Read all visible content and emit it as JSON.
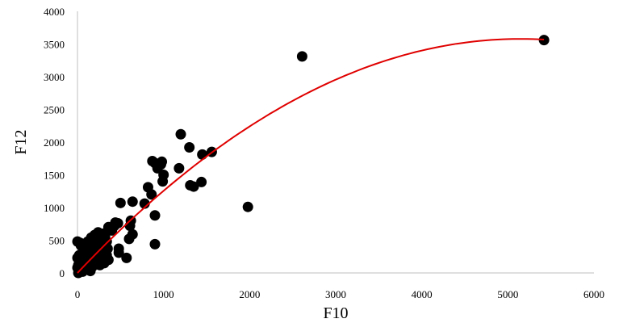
{
  "chart_data": {
    "type": "scatter",
    "xlabel": "F10",
    "ylabel": "F12",
    "xlim": [
      0,
      6000
    ],
    "ylim": [
      0,
      4000
    ],
    "x_ticks": [
      "0",
      "1000",
      "2000",
      "3000",
      "4000",
      "5000",
      "6000"
    ],
    "y_ticks": [
      "0",
      "500",
      "1000",
      "1500",
      "2000",
      "2500",
      "3000",
      "3500",
      "4000"
    ],
    "grid": false,
    "legend": "none",
    "marker_color": "#000000",
    "trendline_color": "#e00000",
    "trendline": {
      "type": "polynomial",
      "degree": 2,
      "coefficients": [
        -0.000135,
        1.39,
        0
      ]
    },
    "points": [
      [
        5420,
        3560
      ],
      [
        2610,
        3310
      ],
      [
        1980,
        1010
      ],
      [
        1560,
        1850
      ],
      [
        1450,
        1810
      ],
      [
        1440,
        1390
      ],
      [
        1350,
        1320
      ],
      [
        1310,
        1340
      ],
      [
        1300,
        1920
      ],
      [
        1200,
        2120
      ],
      [
        1180,
        1600
      ],
      [
        1000,
        1500
      ],
      [
        990,
        1400
      ],
      [
        980,
        1700
      ],
      [
        970,
        1660
      ],
      [
        930,
        1600
      ],
      [
        900,
        1680
      ],
      [
        870,
        1710
      ],
      [
        900,
        880
      ],
      [
        900,
        440
      ],
      [
        860,
        1200
      ],
      [
        820,
        1310
      ],
      [
        780,
        1060
      ],
      [
        640,
        1090
      ],
      [
        640,
        590
      ],
      [
        620,
        800
      ],
      [
        610,
        720
      ],
      [
        600,
        520
      ],
      [
        570,
        230
      ],
      [
        500,
        1070
      ],
      [
        480,
        370
      ],
      [
        480,
        310
      ],
      [
        470,
        760
      ],
      [
        440,
        770
      ],
      [
        430,
        720
      ],
      [
        400,
        650
      ],
      [
        360,
        700
      ],
      [
        340,
        480
      ],
      [
        320,
        560
      ],
      [
        300,
        600
      ],
      [
        280,
        460
      ],
      [
        260,
        600
      ],
      [
        240,
        620
      ],
      [
        230,
        510
      ],
      [
        220,
        400
      ],
      [
        200,
        580
      ],
      [
        190,
        300
      ],
      [
        180,
        420
      ],
      [
        160,
        540
      ],
      [
        150,
        360
      ],
      [
        140,
        200
      ],
      [
        130,
        260
      ],
      [
        120,
        480
      ],
      [
        110,
        140
      ],
      [
        100,
        320
      ],
      [
        90,
        240
      ],
      [
        80,
        100
      ],
      [
        70,
        400
      ],
      [
        60,
        180
      ],
      [
        50,
        60
      ],
      [
        40,
        280
      ],
      [
        30,
        460
      ],
      [
        20,
        40
      ],
      [
        10,
        120
      ],
      [
        0,
        480
      ],
      [
        0,
        230
      ],
      [
        0,
        80
      ],
      [
        10,
        0
      ],
      [
        20,
        270
      ],
      [
        40,
        420
      ],
      [
        60,
        20
      ],
      [
        80,
        310
      ],
      [
        100,
        160
      ],
      [
        120,
        60
      ],
      [
        140,
        420
      ],
      [
        160,
        180
      ],
      [
        170,
        90
      ],
      [
        190,
        220
      ],
      [
        210,
        140
      ],
      [
        230,
        300
      ],
      [
        250,
        220
      ],
      [
        260,
        120
      ],
      [
        280,
        170
      ],
      [
        290,
        320
      ],
      [
        300,
        250
      ],
      [
        310,
        150
      ],
      [
        320,
        330
      ],
      [
        330,
        410
      ],
      [
        340,
        270
      ],
      [
        350,
        370
      ],
      [
        360,
        200
      ],
      [
        200,
        480
      ],
      [
        220,
        200
      ],
      [
        240,
        340
      ],
      [
        90,
        360
      ],
      [
        70,
        140
      ],
      [
        50,
        200
      ],
      [
        30,
        100
      ],
      [
        150,
        30
      ],
      [
        180,
        260
      ]
    ]
  }
}
